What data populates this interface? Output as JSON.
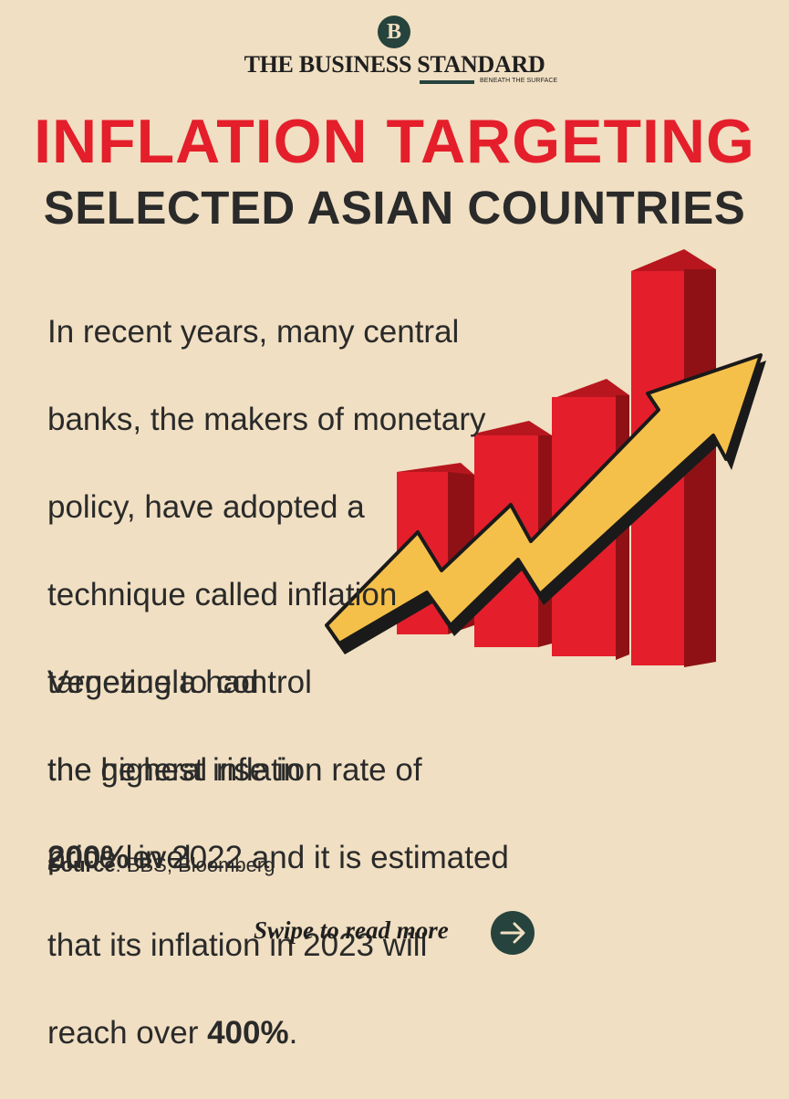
{
  "brand": {
    "badge_letter": "B",
    "name": "THE BUSINESS STANDARD",
    "tagline": "BENEATH THE SURFACE",
    "color": "#27433d"
  },
  "headline": {
    "title": "INFLATION TARGETING",
    "subtitle": "SELECTED ASIAN COUNTRIES",
    "title_color": "#e41e2b"
  },
  "intro": {
    "lines": [
      "In recent years, many central",
      "banks, the makers of monetary",
      "policy, have adopted a",
      "technique called inflation",
      "targeting to control",
      "the general rise in",
      "price level."
    ]
  },
  "venezuela": {
    "line1": "Venezuela had",
    "line2": "the highest inflation rate of",
    "rate_2022": "200%",
    "line3_rest": " in 2022 and it is estimated",
    "line4": "that its inflation in 2023 will",
    "line5_start": "reach over ",
    "rate_2023": "400%",
    "line5_end": "."
  },
  "source": {
    "label": "Source",
    "value": ": BBS, Bloomberg"
  },
  "footer": {
    "swipe_text": "Swipe to read more",
    "arrow_icon": "arrow-right-icon"
  },
  "illustration": {
    "icon": "rising-bar-chart-with-arrow",
    "bar_color": "#e41e2b",
    "bar_dark": "#8f1116",
    "arrow_color": "#f5c04a"
  },
  "background_color": "#f0dfc2"
}
